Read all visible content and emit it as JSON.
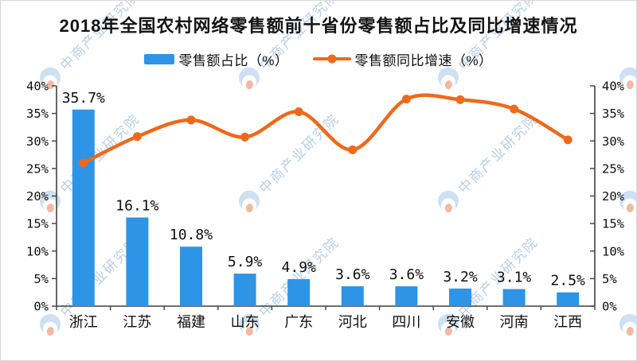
{
  "title": "2018年全国农村网络零售额前十省份零售额占比及同比增速情况",
  "legend": {
    "bar": "零售额占比（%）",
    "line": "零售额同比增速（%）"
  },
  "watermark": {
    "text": "中商产业研究院"
  },
  "colors": {
    "bar": "#2e94e5",
    "line": "#ed6a1c",
    "axis": "#3f3f3f",
    "text": "#0f0f0f",
    "watermark_blue": "#9fc3e4",
    "watermark_orange": "#e8764a"
  },
  "chart_data": {
    "type": "bar",
    "combo": "bar+line",
    "title": "2018年全国农村网络零售额前十省份零售额占比及同比增速情况",
    "categories": [
      "浙江",
      "江苏",
      "福建",
      "山东",
      "广东",
      "河北",
      "四川",
      "安徽",
      "河南",
      "江西"
    ],
    "series": [
      {
        "name": "零售额占比（%）",
        "type": "bar",
        "axis": "left",
        "values": [
          35.7,
          16.1,
          10.8,
          5.9,
          4.9,
          3.6,
          3.6,
          3.2,
          3.1,
          2.5
        ],
        "labels": [
          "35.7%",
          "16.1%",
          "10.8%",
          "5.9%",
          "4.9%",
          "3.6%",
          "3.6%",
          "3.2%",
          "3.1%",
          "2.5%"
        ]
      },
      {
        "name": "零售额同比增速（%）",
        "type": "line",
        "axis": "right",
        "values": [
          26.0,
          30.8,
          33.8,
          30.7,
          35.3,
          28.4,
          37.6,
          37.5,
          35.8,
          30.2
        ]
      }
    ],
    "xlabel": "",
    "ylabel": "",
    "ylim_left": [
      0,
      40
    ],
    "ylim_right": [
      0,
      40
    ],
    "ytick_step": 5,
    "yticklabels": [
      "0%",
      "5%",
      "10%",
      "15%",
      "20%",
      "25%",
      "30%",
      "35%",
      "40%"
    ],
    "grid": false,
    "legend_position": "top"
  }
}
